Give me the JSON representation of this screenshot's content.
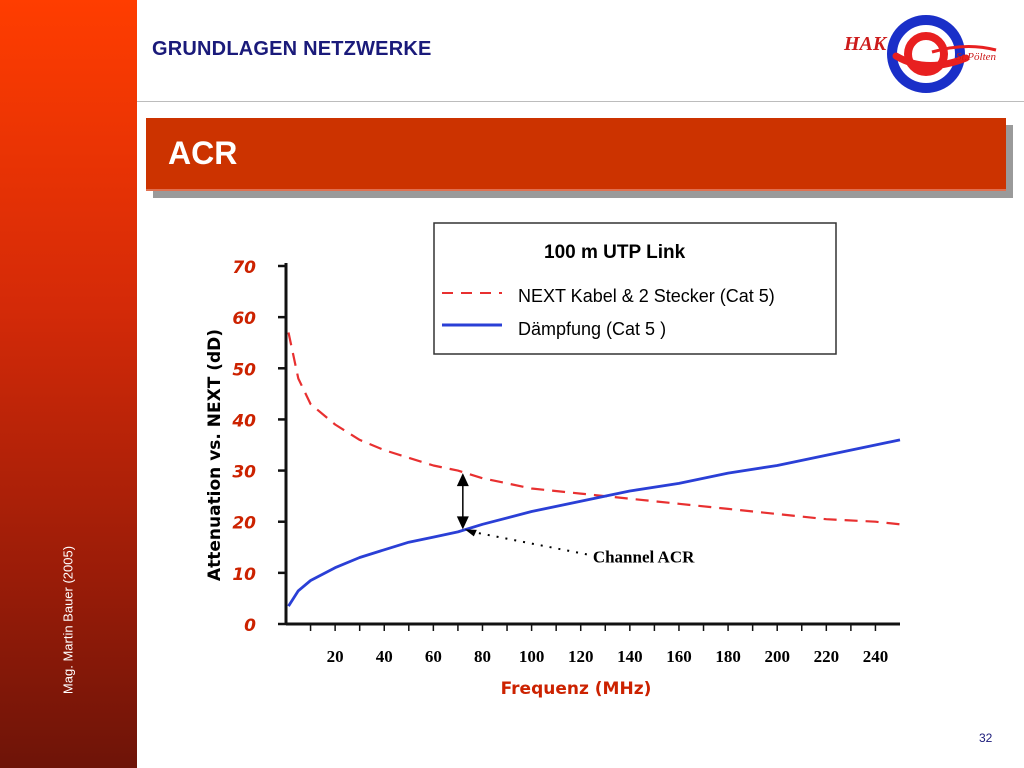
{
  "header": {
    "title": "GRUNDLAGEN NETZWERKE"
  },
  "slide": {
    "title": "ACR"
  },
  "sidebar": {
    "author": "Mag. Martin Bauer (2005)"
  },
  "logo": {
    "text_left": "HAK",
    "text_right": "St.Pölten"
  },
  "footer": {
    "page_number": "32"
  },
  "colors": {
    "sidebar_top": "#ff3d00",
    "sidebar_bottom": "#6e1408",
    "title_bar": "#cc3300",
    "header_text": "#1a1a7a",
    "next_series": "#e83030",
    "attenuation_series": "#2a3fd6",
    "axis_label": "#cc2200"
  },
  "chart_data": {
    "type": "line",
    "title": "100 m UTP Link",
    "xlabel": "Frequenz (MHz)",
    "ylabel": "Attenuation vs. NEXT (dD)",
    "xlim": [
      0,
      250
    ],
    "ylim": [
      0,
      70
    ],
    "x_ticks": [
      20,
      40,
      60,
      80,
      100,
      120,
      140,
      160,
      180,
      200,
      220,
      240
    ],
    "y_ticks": [
      0,
      10,
      20,
      30,
      40,
      50,
      60,
      70
    ],
    "legend_position": "top-right",
    "series": [
      {
        "name": "NEXT Kabel & 2 Stecker (Cat 5)",
        "style": "dashed",
        "x": [
          1,
          5,
          10,
          20,
          30,
          40,
          50,
          60,
          70,
          80,
          100,
          120,
          140,
          160,
          180,
          200,
          220,
          240,
          250
        ],
        "y": [
          57,
          48,
          43,
          39,
          36,
          34,
          32.5,
          31,
          30,
          28.5,
          26.5,
          25.5,
          24.5,
          23.5,
          22.5,
          21.5,
          20.5,
          20,
          19.5
        ]
      },
      {
        "name": "Dämpfung (Cat 5 )",
        "style": "solid",
        "x": [
          1,
          5,
          10,
          20,
          30,
          40,
          50,
          60,
          70,
          80,
          100,
          120,
          140,
          160,
          180,
          200,
          220,
          240,
          250
        ],
        "y": [
          3.5,
          6.5,
          8.5,
          11,
          13,
          14.5,
          16,
          17,
          18,
          19.5,
          22,
          24,
          26,
          27.5,
          29.5,
          31,
          33,
          35,
          36
        ]
      }
    ],
    "annotations": [
      {
        "text": "Channel ACR",
        "x": 72,
        "y_top": 29.5,
        "y_bottom": 18.5
      }
    ]
  }
}
